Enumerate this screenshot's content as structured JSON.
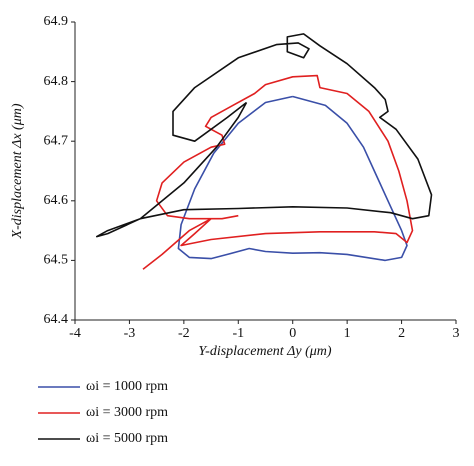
{
  "chart_data": {
    "type": "line",
    "xlabel": "Y-displacement Δy (μm)",
    "ylabel": "X-displacement Δx (μm)",
    "xlim": [
      -4,
      3
    ],
    "xticks": [
      -4,
      -3,
      -2,
      -1,
      0,
      1,
      2,
      3
    ],
    "ylim": [
      64.4,
      64.9
    ],
    "yticks": [
      64.4,
      64.5,
      64.6,
      64.7,
      64.8,
      64.9
    ],
    "series": [
      {
        "name": "ωi = 1000 rpm",
        "color": "#3a4fa8",
        "x": [
          0,
          0.6,
          1.0,
          1.3,
          1.55,
          1.8,
          2.0,
          2.1,
          2.0,
          1.7,
          1.0,
          0.5,
          0,
          -0.5,
          -0.8,
          -1.2,
          -1.5,
          -1.9,
          -2.1,
          -2.05,
          -1.8,
          -1.45,
          -1.0,
          -0.5,
          0
        ],
        "values": [
          64.775,
          64.76,
          64.73,
          64.69,
          64.64,
          64.59,
          64.55,
          64.525,
          64.505,
          64.5,
          64.51,
          64.513,
          64.512,
          64.515,
          64.52,
          64.51,
          64.503,
          64.505,
          64.52,
          64.56,
          64.62,
          64.68,
          64.73,
          64.765,
          64.775
        ]
      },
      {
        "name": "ωi = 3000 rpm",
        "color": "#e02020",
        "x": [
          -2.75,
          -2.4,
          -1.9,
          -1.5,
          -1.8,
          -2.05,
          -1.5,
          -0.5,
          0.5,
          1.5,
          1.9,
          2.1,
          2.2,
          2.1,
          1.95,
          1.75,
          1.4,
          1.0,
          0.5,
          0.45,
          0,
          -0.5,
          -0.7,
          -1.1,
          -1.5,
          -1.6,
          -1.3,
          -1.25,
          -1.5,
          -2.0,
          -2.4,
          -2.5,
          -2.3,
          -1.9,
          -1.3,
          -1.0
        ],
        "values": [
          64.485,
          64.51,
          64.55,
          64.57,
          64.545,
          64.525,
          64.535,
          64.545,
          64.548,
          64.548,
          64.545,
          64.53,
          64.55,
          64.6,
          64.65,
          64.7,
          64.75,
          64.78,
          64.79,
          64.81,
          64.808,
          64.795,
          64.78,
          64.76,
          64.74,
          64.725,
          64.71,
          64.695,
          64.69,
          64.665,
          64.63,
          64.6,
          64.575,
          64.57,
          64.57,
          64.575
        ]
      },
      {
        "name": "ωi = 5000 rpm",
        "color": "#111111",
        "x": [
          -0.85,
          -1.2,
          -1.8,
          -2.2,
          -2.2,
          -1.8,
          -1.0,
          -0.3,
          0.1,
          0.3,
          0.2,
          -0.1,
          -0.1,
          0.2,
          0.5,
          1.0,
          1.5,
          1.7,
          1.75,
          1.6,
          1.9,
          2.3,
          2.55,
          2.5,
          2.2,
          1.8,
          1.0,
          0,
          -1.0,
          -2.0,
          -2.8,
          -3.4,
          -3.6,
          -3.4,
          -2.8,
          -2.0,
          -1.4,
          -1.0,
          -0.85
        ],
        "values": [
          64.765,
          64.74,
          64.7,
          64.71,
          64.75,
          64.79,
          64.84,
          64.862,
          64.865,
          64.855,
          64.84,
          64.85,
          64.875,
          64.88,
          64.86,
          64.83,
          64.79,
          64.77,
          64.75,
          64.74,
          64.72,
          64.67,
          64.61,
          64.575,
          64.57,
          64.58,
          64.588,
          64.59,
          64.587,
          64.585,
          64.57,
          64.55,
          64.54,
          64.545,
          64.57,
          64.63,
          64.69,
          64.74,
          64.765
        ]
      }
    ]
  }
}
